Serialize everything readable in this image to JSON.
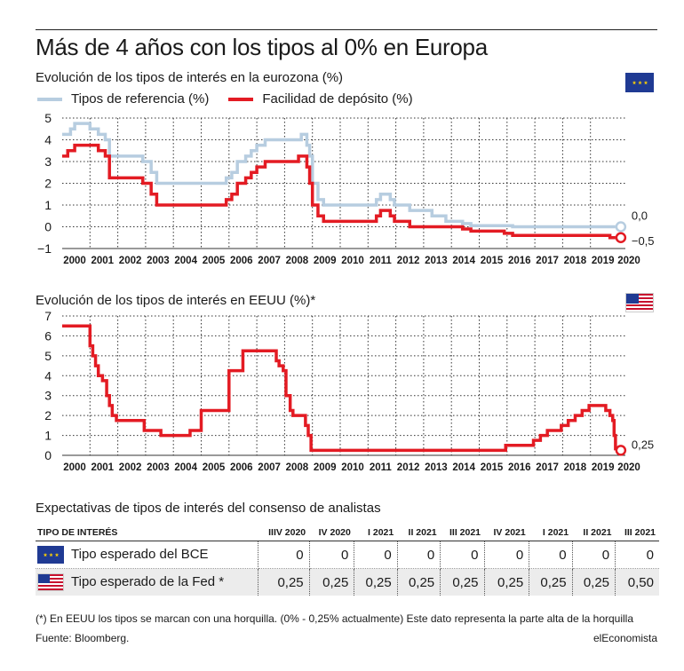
{
  "header": {
    "title": "Más de 4 años con los tipos al 0% en Europa"
  },
  "chart_data": [
    {
      "type": "line",
      "title": "Evolución de los tipos de interés en la eurozona (%)",
      "icon": "eu-flag-icon",
      "ylim": [
        -1,
        5
      ],
      "yticks": [
        "5",
        "4",
        "3",
        "2",
        "1",
        "0",
        "−1"
      ],
      "xticks": [
        "2000",
        "2001",
        "2002",
        "2003",
        "2004",
        "2005",
        "2006",
        "2007",
        "2008",
        "2009",
        "2010",
        "2011",
        "2012",
        "2013",
        "2014",
        "2015",
        "2016",
        "2017",
        "2018",
        "2019",
        "2020"
      ],
      "grid": true,
      "legend": "top-left",
      "series": [
        {
          "name": "Tipos de referencia (%)",
          "color": "#b7cde0",
          "end_label": "0,0",
          "points": [
            [
              2000.0,
              4.25
            ],
            [
              2000.2,
              4.25
            ],
            [
              2000.3,
              4.5
            ],
            [
              2000.45,
              4.75
            ],
            [
              2000.8,
              4.75
            ],
            [
              2001.0,
              4.5
            ],
            [
              2001.3,
              4.25
            ],
            [
              2001.55,
              4.0
            ],
            [
              2001.7,
              3.25
            ],
            [
              2002.0,
              3.25
            ],
            [
              2002.9,
              3.0
            ],
            [
              2003.2,
              2.5
            ],
            [
              2003.4,
              2.0
            ],
            [
              2005.9,
              2.25
            ],
            [
              2006.1,
              2.5
            ],
            [
              2006.3,
              3.0
            ],
            [
              2006.6,
              3.25
            ],
            [
              2006.8,
              3.5
            ],
            [
              2007.0,
              3.75
            ],
            [
              2007.3,
              4.0
            ],
            [
              2008.5,
              4.0
            ],
            [
              2008.6,
              4.25
            ],
            [
              2008.8,
              3.75
            ],
            [
              2008.9,
              3.25
            ],
            [
              2009.0,
              2.0
            ],
            [
              2009.2,
              1.25
            ],
            [
              2009.4,
              1.0
            ],
            [
              2011.3,
              1.25
            ],
            [
              2011.45,
              1.5
            ],
            [
              2011.8,
              1.25
            ],
            [
              2011.95,
              1.0
            ],
            [
              2012.5,
              0.75
            ],
            [
              2013.3,
              0.5
            ],
            [
              2013.8,
              0.25
            ],
            [
              2014.4,
              0.15
            ],
            [
              2014.7,
              0.05
            ],
            [
              2016.2,
              0.0
            ],
            [
              2019.9,
              0.0
            ]
          ]
        },
        {
          "name": "Facilidad de depósito (%)",
          "color": "#e31b23",
          "end_label": "−0,5",
          "points": [
            [
              2000.0,
              3.25
            ],
            [
              2000.2,
              3.5
            ],
            [
              2000.45,
              3.75
            ],
            [
              2001.0,
              3.75
            ],
            [
              2001.3,
              3.5
            ],
            [
              2001.55,
              3.25
            ],
            [
              2001.7,
              2.25
            ],
            [
              2002.9,
              2.0
            ],
            [
              2003.2,
              1.5
            ],
            [
              2003.4,
              1.0
            ],
            [
              2005.9,
              1.25
            ],
            [
              2006.1,
              1.5
            ],
            [
              2006.3,
              2.0
            ],
            [
              2006.6,
              2.25
            ],
            [
              2006.8,
              2.5
            ],
            [
              2007.0,
              2.75
            ],
            [
              2007.3,
              3.0
            ],
            [
              2008.5,
              3.25
            ],
            [
              2008.8,
              2.75
            ],
            [
              2008.9,
              2.0
            ],
            [
              2009.0,
              1.0
            ],
            [
              2009.2,
              0.5
            ],
            [
              2009.4,
              0.25
            ],
            [
              2011.3,
              0.5
            ],
            [
              2011.45,
              0.75
            ],
            [
              2011.8,
              0.5
            ],
            [
              2011.95,
              0.25
            ],
            [
              2012.5,
              0.0
            ],
            [
              2014.4,
              -0.1
            ],
            [
              2014.7,
              -0.2
            ],
            [
              2015.9,
              -0.3
            ],
            [
              2016.2,
              -0.4
            ],
            [
              2019.7,
              -0.5
            ],
            [
              2019.9,
              -0.5
            ]
          ]
        }
      ]
    },
    {
      "type": "line",
      "title": "Evolución de los tipos de interés en EEUU (%)*",
      "icon": "us-flag-icon",
      "ylim": [
        0,
        7
      ],
      "yticks": [
        "7",
        "6",
        "5",
        "4",
        "3",
        "2",
        "1",
        "0"
      ],
      "xticks": [
        "2000",
        "2001",
        "2002",
        "2003",
        "2004",
        "2005",
        "2006",
        "2007",
        "2008",
        "2009",
        "2010",
        "2011",
        "2012",
        "2013",
        "2014",
        "2015",
        "2016",
        "2017",
        "2018",
        "2019",
        "2020"
      ],
      "grid": true,
      "series": [
        {
          "name": "",
          "color": "#e31b23",
          "end_label": "0,25",
          "points": [
            [
              2000.0,
              6.5
            ],
            [
              2000.6,
              6.5
            ],
            [
              2001.0,
              5.5
            ],
            [
              2001.1,
              5.0
            ],
            [
              2001.2,
              4.5
            ],
            [
              2001.3,
              4.0
            ],
            [
              2001.45,
              3.75
            ],
            [
              2001.6,
              3.0
            ],
            [
              2001.7,
              2.5
            ],
            [
              2001.8,
              2.0
            ],
            [
              2001.95,
              1.75
            ],
            [
              2002.9,
              1.75
            ],
            [
              2002.95,
              1.25
            ],
            [
              2003.5,
              1.25
            ],
            [
              2003.55,
              1.0
            ],
            [
              2004.5,
              1.0
            ],
            [
              2004.6,
              1.25
            ],
            [
              2005.0,
              2.25
            ],
            [
              2006.0,
              4.25
            ],
            [
              2006.5,
              5.25
            ],
            [
              2007.6,
              5.25
            ],
            [
              2007.7,
              4.75
            ],
            [
              2007.8,
              4.5
            ],
            [
              2007.95,
              4.25
            ],
            [
              2008.05,
              3.0
            ],
            [
              2008.2,
              2.25
            ],
            [
              2008.3,
              2.0
            ],
            [
              2008.75,
              1.5
            ],
            [
              2008.85,
              1.0
            ],
            [
              2008.95,
              0.25
            ],
            [
              2015.9,
              0.25
            ],
            [
              2015.95,
              0.5
            ],
            [
              2016.95,
              0.75
            ],
            [
              2017.2,
              1.0
            ],
            [
              2017.45,
              1.25
            ],
            [
              2017.95,
              1.5
            ],
            [
              2018.2,
              1.75
            ],
            [
              2018.45,
              2.0
            ],
            [
              2018.7,
              2.25
            ],
            [
              2018.95,
              2.5
            ],
            [
              2019.5,
              2.5
            ],
            [
              2019.55,
              2.25
            ],
            [
              2019.7,
              2.0
            ],
            [
              2019.8,
              1.75
            ],
            [
              2019.85,
              1.0
            ],
            [
              2019.9,
              0.25
            ]
          ]
        }
      ]
    }
  ],
  "table": {
    "title": "Expectativas de tipos de interés del consenso de analistas",
    "headers": [
      "TIPO DE INTERÉS",
      "IIIV 2020",
      "IV 2020",
      "I 2021",
      "II 2021",
      "III 2021",
      "IV 2021",
      "I 2021",
      "II 2021",
      "III 2021"
    ],
    "rows": [
      {
        "label": "Tipo esperado del BCE",
        "icon": "eu-flag-icon",
        "values": [
          "0",
          "0",
          "0",
          "0",
          "0",
          "0",
          "0",
          "0",
          "0"
        ]
      },
      {
        "label": "Tipo esperado de la Fed *",
        "icon": "us-flag-icon",
        "values": [
          "0,25",
          "0,25",
          "0,25",
          "0,25",
          "0,25",
          "0,25",
          "0,25",
          "0,25",
          "0,50"
        ]
      }
    ]
  },
  "footer": {
    "note": "(*) En EEUU los tipos se marcan con una horquilla. (0% - 0,25% actualmente) Este dato representa la parte alta de la horquilla",
    "source": "Fuente: Bloomberg.",
    "brand": "elEconomista"
  }
}
